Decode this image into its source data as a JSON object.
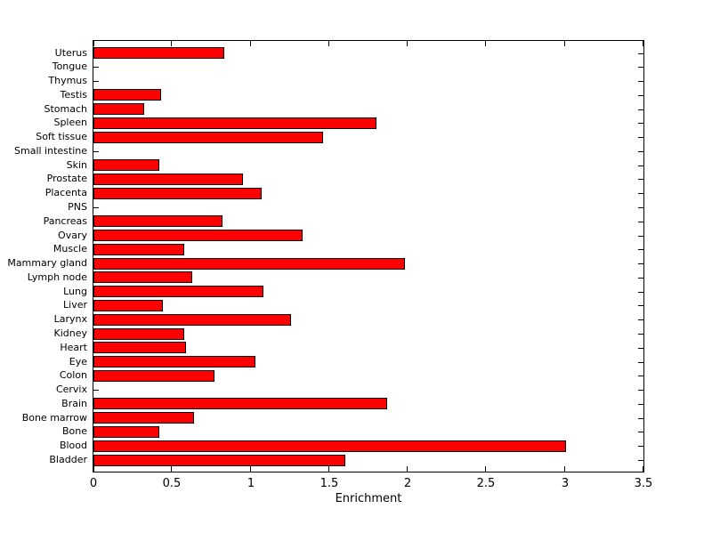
{
  "chart_data": {
    "type": "bar",
    "orientation": "horizontal",
    "title": "",
    "xlabel": "Enrichment",
    "ylabel": "",
    "categories": [
      "Uterus",
      "Tongue",
      "Thymus",
      "Testis",
      "Stomach",
      "Spleen",
      "Soft tissue",
      "Small intestine",
      "Skin",
      "Prostate",
      "Placenta",
      "PNS",
      "Pancreas",
      "Ovary",
      "Muscle",
      "Mammary gland",
      "Lymph node",
      "Lung",
      "Liver",
      "Larynx",
      "Kidney",
      "Heart",
      "Eye",
      "Colon",
      "Cervix",
      "Brain",
      "Bone marrow",
      "Bone",
      "Blood",
      "Bladder"
    ],
    "values": [
      0.83,
      0,
      0,
      0.43,
      0.32,
      1.8,
      1.46,
      0,
      0.42,
      0.95,
      1.07,
      0,
      0.82,
      1.33,
      0.58,
      1.98,
      0.63,
      1.08,
      0.44,
      1.26,
      0.58,
      0.59,
      1.03,
      0.77,
      0,
      1.87,
      0.64,
      0.42,
      3.01,
      1.6
    ],
    "xlim": [
      0,
      3.5
    ],
    "xticks": [
      0,
      0.5,
      1,
      1.5,
      2,
      2.5,
      3,
      3.5
    ],
    "xtick_labels": [
      "0",
      "0.5",
      "1",
      "1.5",
      "2",
      "2.5",
      "3",
      "3.5"
    ],
    "bar_color": "#FF0000",
    "bar_edge_color": "#000000",
    "axis_color": "#000000",
    "background_color": "#FFFFFF",
    "grid": false,
    "legend": false
  }
}
